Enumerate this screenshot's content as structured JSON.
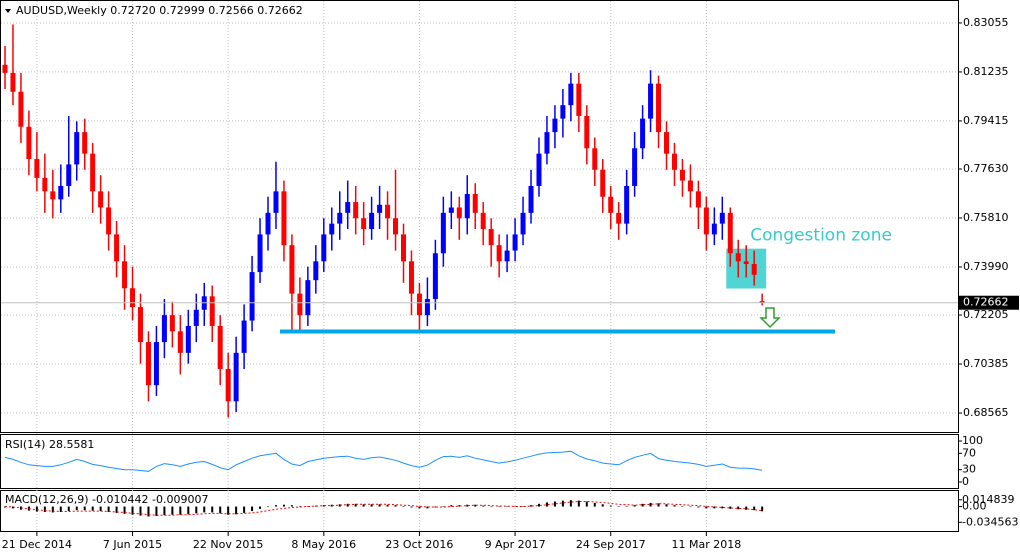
{
  "chart_data": {
    "type": "candlestick",
    "title": "AUDUSD,Weekly  0.72720 0.72999 0.72566 0.72662",
    "categories": [
      null,
      null,
      null,
      null,
      "21 Dec 2014",
      null,
      null,
      null,
      null,
      null,
      null,
      null,
      null,
      null,
      null,
      null,
      "7 Jun 2015",
      null,
      null,
      null,
      null,
      null,
      null,
      null,
      null,
      null,
      null,
      null,
      "22 Nov 2015",
      null,
      null,
      null,
      null,
      null,
      null,
      null,
      null,
      null,
      null,
      null,
      "8 May 2016",
      null,
      null,
      null,
      null,
      null,
      null,
      null,
      null,
      null,
      null,
      null,
      "23 Oct 2016",
      null,
      null,
      null,
      null,
      null,
      null,
      null,
      null,
      null,
      null,
      null,
      "9 Apr 2017",
      null,
      null,
      null,
      null,
      null,
      null,
      null,
      null,
      null,
      null,
      null,
      "24 Sep 2017",
      null,
      null,
      null,
      null,
      null,
      null,
      null,
      null,
      null,
      null,
      null,
      "11 Mar 2018",
      null,
      null,
      null,
      null,
      null,
      null,
      null
    ],
    "ohlc": [
      [
        0.815,
        0.822,
        0.806,
        0.812
      ],
      [
        0.812,
        0.83,
        0.8,
        0.805
      ],
      [
        0.805,
        0.812,
        0.786,
        0.792
      ],
      [
        0.792,
        0.798,
        0.774,
        0.78
      ],
      [
        0.78,
        0.79,
        0.768,
        0.773
      ],
      [
        0.773,
        0.782,
        0.76,
        0.768
      ],
      [
        0.768,
        0.776,
        0.758,
        0.765
      ],
      [
        0.765,
        0.778,
        0.76,
        0.77
      ],
      [
        0.77,
        0.796,
        0.766,
        0.778
      ],
      [
        0.778,
        0.794,
        0.772,
        0.79
      ],
      [
        0.79,
        0.795,
        0.776,
        0.782
      ],
      [
        0.782,
        0.786,
        0.76,
        0.768
      ],
      [
        0.768,
        0.774,
        0.756,
        0.762
      ],
      [
        0.762,
        0.768,
        0.746,
        0.752
      ],
      [
        0.752,
        0.757,
        0.736,
        0.742
      ],
      [
        0.742,
        0.748,
        0.724,
        0.732
      ],
      [
        0.732,
        0.74,
        0.72,
        0.725
      ],
      [
        0.725,
        0.73,
        0.704,
        0.712
      ],
      [
        0.712,
        0.716,
        0.69,
        0.696
      ],
      [
        0.696,
        0.718,
        0.692,
        0.712
      ],
      [
        0.712,
        0.728,
        0.706,
        0.722
      ],
      [
        0.722,
        0.727,
        0.71,
        0.716
      ],
      [
        0.716,
        0.722,
        0.7,
        0.708
      ],
      [
        0.708,
        0.724,
        0.704,
        0.718
      ],
      [
        0.718,
        0.73,
        0.712,
        0.724
      ],
      [
        0.724,
        0.734,
        0.718,
        0.729
      ],
      [
        0.729,
        0.733,
        0.712,
        0.718
      ],
      [
        0.718,
        0.722,
        0.696,
        0.702
      ],
      [
        0.702,
        0.708,
        0.684,
        0.69
      ],
      [
        0.69,
        0.714,
        0.686,
        0.708
      ],
      [
        0.708,
        0.726,
        0.702,
        0.72
      ],
      [
        0.72,
        0.744,
        0.716,
        0.738
      ],
      [
        0.738,
        0.758,
        0.734,
        0.752
      ],
      [
        0.752,
        0.766,
        0.746,
        0.76
      ],
      [
        0.76,
        0.779,
        0.754,
        0.768
      ],
      [
        0.768,
        0.772,
        0.742,
        0.748
      ],
      [
        0.748,
        0.752,
        0.716,
        0.73
      ],
      [
        0.73,
        0.736,
        0.716,
        0.722
      ],
      [
        0.722,
        0.74,
        0.718,
        0.735
      ],
      [
        0.735,
        0.748,
        0.73,
        0.742
      ],
      [
        0.742,
        0.758,
        0.738,
        0.752
      ],
      [
        0.752,
        0.762,
        0.746,
        0.756
      ],
      [
        0.756,
        0.768,
        0.75,
        0.76
      ],
      [
        0.76,
        0.772,
        0.754,
        0.764
      ],
      [
        0.764,
        0.77,
        0.752,
        0.758
      ],
      [
        0.758,
        0.764,
        0.748,
        0.754
      ],
      [
        0.754,
        0.766,
        0.75,
        0.76
      ],
      [
        0.76,
        0.77,
        0.754,
        0.763
      ],
      [
        0.763,
        0.768,
        0.75,
        0.758
      ],
      [
        0.758,
        0.776,
        0.746,
        0.752
      ],
      [
        0.752,
        0.756,
        0.734,
        0.742
      ],
      [
        0.742,
        0.746,
        0.722,
        0.73
      ],
      [
        0.73,
        0.734,
        0.716,
        0.722
      ],
      [
        0.722,
        0.736,
        0.718,
        0.728
      ],
      [
        0.728,
        0.75,
        0.724,
        0.745
      ],
      [
        0.745,
        0.766,
        0.74,
        0.76
      ],
      [
        0.76,
        0.768,
        0.754,
        0.762
      ],
      [
        0.762,
        0.766,
        0.75,
        0.758
      ],
      [
        0.758,
        0.774,
        0.752,
        0.767
      ],
      [
        0.767,
        0.771,
        0.754,
        0.76
      ],
      [
        0.76,
        0.764,
        0.748,
        0.754
      ],
      [
        0.754,
        0.758,
        0.74,
        0.748
      ],
      [
        0.748,
        0.752,
        0.736,
        0.742
      ],
      [
        0.742,
        0.752,
        0.738,
        0.746
      ],
      [
        0.746,
        0.758,
        0.742,
        0.752
      ],
      [
        0.752,
        0.766,
        0.748,
        0.76
      ],
      [
        0.76,
        0.776,
        0.756,
        0.77
      ],
      [
        0.77,
        0.788,
        0.766,
        0.782
      ],
      [
        0.782,
        0.796,
        0.778,
        0.79
      ],
      [
        0.79,
        0.8,
        0.784,
        0.795
      ],
      [
        0.795,
        0.806,
        0.788,
        0.8
      ],
      [
        0.8,
        0.812,
        0.794,
        0.808
      ],
      [
        0.808,
        0.812,
        0.79,
        0.796
      ],
      [
        0.796,
        0.8,
        0.778,
        0.784
      ],
      [
        0.784,
        0.788,
        0.77,
        0.776
      ],
      [
        0.776,
        0.78,
        0.76,
        0.766
      ],
      [
        0.766,
        0.77,
        0.754,
        0.76
      ],
      [
        0.76,
        0.764,
        0.75,
        0.756
      ],
      [
        0.756,
        0.776,
        0.752,
        0.77
      ],
      [
        0.77,
        0.79,
        0.766,
        0.784
      ],
      [
        0.784,
        0.8,
        0.78,
        0.795
      ],
      [
        0.795,
        0.813,
        0.79,
        0.808
      ],
      [
        0.808,
        0.811,
        0.784,
        0.79
      ],
      [
        0.79,
        0.794,
        0.776,
        0.782
      ],
      [
        0.782,
        0.786,
        0.77,
        0.776
      ],
      [
        0.776,
        0.78,
        0.766,
        0.772
      ],
      [
        0.772,
        0.778,
        0.762,
        0.768
      ],
      [
        0.768,
        0.772,
        0.754,
        0.762
      ],
      [
        0.762,
        0.766,
        0.746,
        0.752
      ],
      [
        0.752,
        0.762,
        0.748,
        0.756
      ],
      [
        0.756,
        0.766,
        0.75,
        0.76
      ],
      [
        0.76,
        0.762,
        0.74,
        0.745
      ],
      [
        0.745,
        0.75,
        0.736,
        0.742
      ],
      [
        0.742,
        0.748,
        0.736,
        0.741
      ],
      [
        0.741,
        0.746,
        0.733,
        0.737
      ],
      [
        0.7272,
        0.72999,
        0.72566,
        0.72662
      ]
    ],
    "up_color": "#0000ff",
    "down_color": "#ff0000",
    "ylim": [
      0.6786,
      0.8387
    ],
    "yticks": [
      0.83055,
      0.81235,
      0.79415,
      {
        "value": 0.7763,
        "label": "0.77630"
      },
      {
        "value": 0.7581,
        "label": "0.75810"
      },
      {
        "value": 0.7399,
        "label": "0.73990"
      },
      0.72205,
      0.70385,
      0.68565
    ],
    "grid": true,
    "last_price": {
      "value": 0.72662,
      "label": "0.72662"
    },
    "support_level": 0.71592,
    "support_color": "#00a8e8",
    "zone": {
      "label": "Congestion zone",
      "low": 0.7319,
      "high": 0.7467,
      "color": "#33cccc"
    },
    "rsi": {
      "title": "RSI(14) 28.5581",
      "color": "#1e90ff",
      "ylim": [
        -14.6,
        114.6
      ],
      "yticks": [
        100,
        70,
        30,
        0
      ],
      "values": [
        60,
        55,
        48,
        42,
        40,
        38,
        38,
        42,
        48,
        55,
        50,
        43,
        40,
        36,
        33,
        30,
        30,
        28,
        26,
        38,
        45,
        42,
        38,
        44,
        48,
        50,
        43,
        35,
        30,
        42,
        50,
        58,
        64,
        67,
        70,
        55,
        44,
        40,
        50,
        54,
        58,
        60,
        62,
        63,
        58,
        55,
        59,
        61,
        57,
        53,
        46,
        40,
        36,
        41,
        53,
        62,
        63,
        60,
        64,
        58,
        54,
        50,
        46,
        49,
        53,
        58,
        63,
        68,
        71,
        72,
        73,
        75,
        64,
        56,
        52,
        46,
        44,
        42,
        52,
        60,
        65,
        70,
        57,
        53,
        50,
        48,
        46,
        43,
        38,
        41,
        44,
        36,
        34,
        34,
        32,
        28.5581
      ]
    },
    "macd": {
      "title": "MACD(12,26,9) -0.010442 -0.009007",
      "color": "#000000",
      "signal_color": "#ff0000",
      "ylim": [
        -0.0538,
        0.0342
      ],
      "yticks": [
        0.014839,
        {
          "value": 0,
          "label": "0.00"
        },
        -0.034563
      ],
      "histogram": [
        -0.002,
        -0.004,
        -0.007,
        -0.009,
        -0.011,
        -0.012,
        -0.013,
        -0.012,
        -0.01,
        -0.008,
        -0.008,
        -0.009,
        -0.01,
        -0.012,
        -0.014,
        -0.016,
        -0.018,
        -0.02,
        -0.022,
        -0.021,
        -0.019,
        -0.018,
        -0.018,
        -0.017,
        -0.015,
        -0.013,
        -0.013,
        -0.015,
        -0.018,
        -0.017,
        -0.014,
        -0.01,
        -0.005,
        -0.001,
        0.003,
        0.004,
        0.003,
        0.001,
        0.001,
        0.002,
        0.003,
        0.004,
        0.005,
        0.006,
        0.006,
        0.005,
        0.005,
        0.005,
        0.004,
        0.003,
        0.001,
        -0.002,
        -0.004,
        -0.004,
        -0.002,
        0.001,
        0.003,
        0.003,
        0.004,
        0.004,
        0.002,
        0,
        -0.001,
        -0.001,
        0,
        0.001,
        0.003,
        0.006,
        0.009,
        0.011,
        0.013,
        0.014,
        0.013,
        0.011,
        0.008,
        0.005,
        0.002,
        0,
        0.001,
        0.003,
        0.006,
        0.008,
        0.007,
        0.005,
        0.003,
        0.001,
        0,
        -0.002,
        -0.004,
        -0.004,
        -0.004,
        -0.005,
        -0.006,
        -0.007,
        -0.008,
        -0.010442
      ],
      "signal": [
        0,
        -0.001,
        -0.003,
        -0.005,
        -0.007,
        -0.009,
        -0.01,
        -0.011,
        -0.011,
        -0.01,
        -0.01,
        -0.01,
        -0.01,
        -0.011,
        -0.012,
        -0.013,
        -0.015,
        -0.016,
        -0.018,
        -0.019,
        -0.019,
        -0.019,
        -0.018,
        -0.018,
        -0.017,
        -0.016,
        -0.015,
        -0.015,
        -0.016,
        -0.016,
        -0.015,
        -0.014,
        -0.012,
        -0.009,
        -0.006,
        -0.004,
        -0.002,
        -0.001,
        0,
        0.001,
        0.002,
        0.002,
        0.003,
        0.004,
        0.005,
        0.005,
        0.005,
        0.005,
        0.005,
        0.004,
        0.003,
        0.002,
        0,
        -0.001,
        -0.001,
        -0.001,
        0,
        0.001,
        0.002,
        0.003,
        0.003,
        0.002,
        0.001,
        0.001,
        0,
        0,
        0.001,
        0.002,
        0.004,
        0.006,
        0.008,
        0.01,
        0.011,
        0.011,
        0.01,
        0.009,
        0.007,
        0.005,
        0.004,
        0.003,
        0.004,
        0.005,
        0.006,
        0.006,
        0.005,
        0.004,
        0.003,
        0.002,
        0,
        -0.001,
        -0.002,
        -0.003,
        -0.004,
        -0.005,
        -0.007,
        -0.009007
      ]
    }
  }
}
